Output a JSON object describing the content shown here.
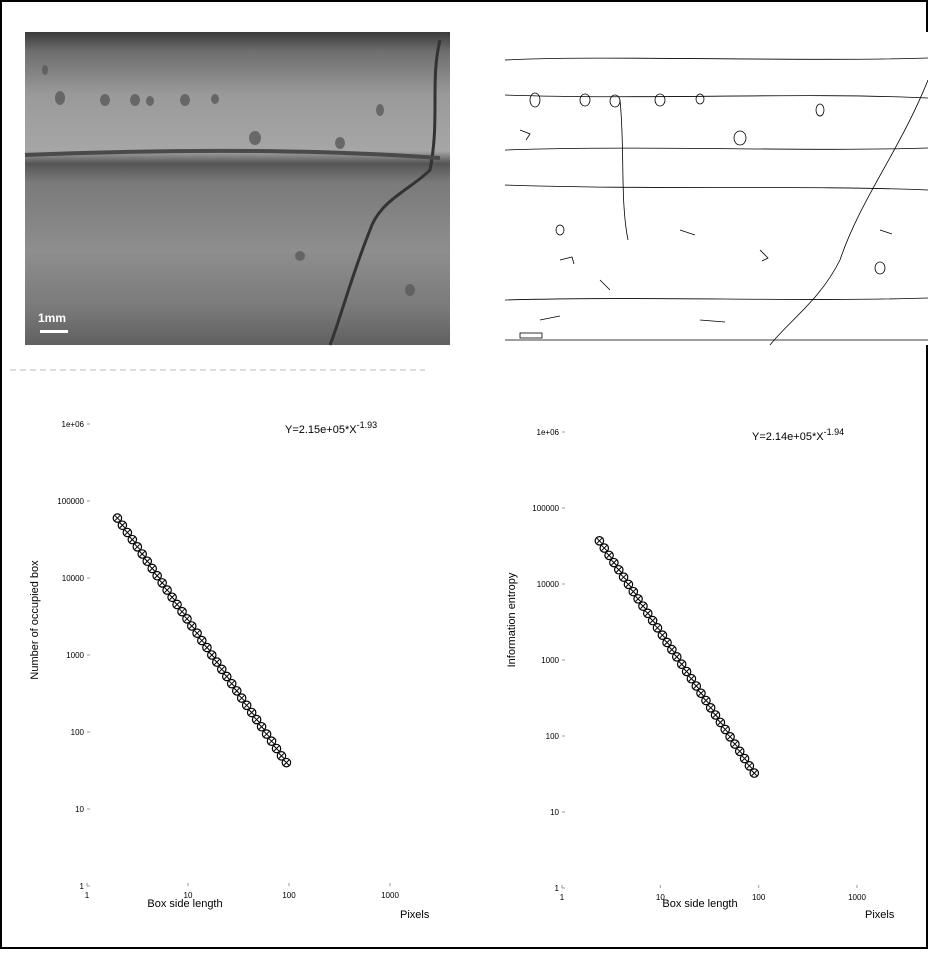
{
  "images": [
    {
      "scale_label": "1mm"
    }
  ],
  "chart_data": [
    {
      "type": "scatter",
      "log_x": true,
      "log_y": true,
      "color": "#000000",
      "annotation": "Y=2.15e+05*X",
      "annotation_exponent": "-1.93",
      "x_label": "Box side length",
      "x_unit": "Pixels",
      "y_label": "Number of occupied box",
      "xlim": [
        1,
        1000
      ],
      "ylim": [
        1,
        1000000
      ],
      "xticks": [
        1,
        10,
        100,
        1000
      ],
      "yticks": [
        1,
        10,
        100,
        1000,
        10000,
        100000,
        {
          "value": 1000000,
          "label": "1e+06"
        }
      ],
      "x": [
        2,
        2.24,
        2.51,
        2.81,
        3.15,
        3.52,
        3.95,
        4.42,
        4.95,
        5.55,
        6.21,
        6.96,
        7.79,
        8.73,
        9.77,
        10.9,
        12.3,
        13.7,
        15.4,
        17.2,
        19.3,
        21.6,
        24.2,
        27.1,
        30.4,
        34.0,
        38.1,
        42.7,
        47.8,
        53.5,
        60.0,
        67.2,
        75.2,
        84.2,
        94.3
      ],
      "values": [
        60000,
        48400,
        39000,
        31500,
        25400,
        20500,
        16500,
        13300,
        10700,
        8640,
        6970,
        5620,
        4530,
        3650,
        2950,
        2380,
        1920,
        1540,
        1250,
        1000,
        809,
        652,
        526,
        424,
        342,
        276,
        222,
        179,
        145,
        117,
        94,
        76,
        61,
        49,
        40
      ]
    },
    {
      "type": "scatter",
      "log_x": true,
      "log_y": true,
      "color": "#000000",
      "annotation": "Y=2.14e+05*X",
      "annotation_exponent": "-1.94",
      "x_label": "Box side length",
      "x_unit": "Pixels",
      "y_label": "Information entropy",
      "xlim": [
        1,
        1000
      ],
      "ylim": [
        1,
        1000000
      ],
      "xticks": [
        1,
        10,
        100,
        1000
      ],
      "yticks": [
        1,
        10,
        100,
        1000,
        10000,
        100000,
        {
          "value": 1000000,
          "label": "1e+06"
        }
      ],
      "x": [
        2.4,
        2.69,
        3.01,
        3.37,
        3.78,
        4.23,
        4.74,
        5.31,
        5.94,
        6.66,
        7.45,
        8.35,
        9.35,
        10.5,
        11.7,
        13.1,
        14.7,
        16.5,
        18.5,
        20.7,
        23.2,
        25.9,
        29.1,
        32.5,
        36.4,
        40.8,
        45.7,
        51.2,
        57.3,
        64.2,
        71.9,
        80.5,
        90.2
      ],
      "values": [
        37000,
        29700,
        23800,
        19100,
        15400,
        12300,
        9890,
        7940,
        6370,
        5110,
        4110,
        3300,
        2650,
        2120,
        1700,
        1370,
        1100,
        880,
        706,
        567,
        455,
        365,
        293,
        235,
        189,
        151,
        122,
        97.6,
        78.3,
        62.9,
        50.5,
        40.5,
        32.5
      ]
    }
  ]
}
